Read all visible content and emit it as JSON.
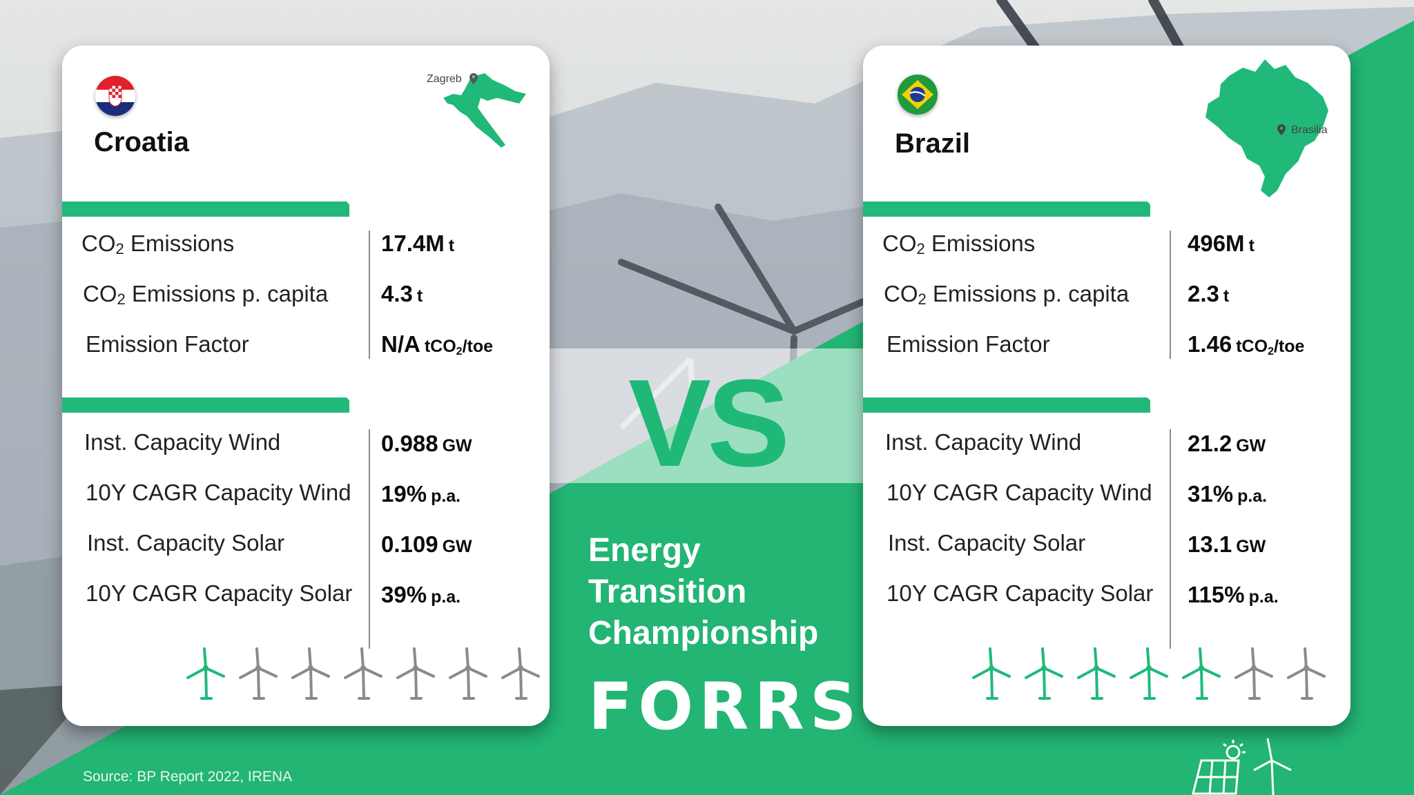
{
  "colors": {
    "accent_green": "#20b97a",
    "turbine_active": "#20b97a",
    "turbine_inactive": "#8a8a8a"
  },
  "left": {
    "country": "Croatia",
    "flag_icon": "croatia-flag-icon",
    "capital": "Zagreb",
    "stats_emissions": [
      {
        "label_pre": "CO",
        "label_sub": "2",
        "label_post": " Emissions",
        "value": "17.4M",
        "unit_pre": "t",
        "unit_sub": "",
        "unit_post": ""
      },
      {
        "label_pre": "CO",
        "label_sub": "2",
        "label_post": " Emissions p. capita",
        "value": "4.3",
        "unit_pre": "t",
        "unit_sub": "",
        "unit_post": ""
      },
      {
        "label_pre": "Emission Factor",
        "label_sub": "",
        "label_post": "",
        "value": "N/A",
        "unit_pre": "tCO",
        "unit_sub": "2",
        "unit_post": "/toe"
      }
    ],
    "stats_capacity": [
      {
        "label": "Inst. Capacity Wind",
        "value": "0.988",
        "unit": "GW"
      },
      {
        "label": "10Y CAGR Capacity Wind",
        "value": "19%",
        "unit": "p.a."
      },
      {
        "label": "Inst. Capacity Solar",
        "value": "0.109",
        "unit": "GW"
      },
      {
        "label": "10Y CAGR Capacity Solar",
        "value": "39%",
        "unit": "p.a."
      }
    ],
    "turbines_total": 7,
    "turbines_active": 1
  },
  "right": {
    "country": "Brazil",
    "flag_icon": "brazil-flag-icon",
    "capital": "Brasilia",
    "stats_emissions": [
      {
        "label_pre": "CO",
        "label_sub": "2",
        "label_post": " Emissions",
        "value": "496M",
        "unit_pre": "t",
        "unit_sub": "",
        "unit_post": ""
      },
      {
        "label_pre": "CO",
        "label_sub": "2",
        "label_post": " Emissions p. capita",
        "value": "2.3",
        "unit_pre": "t",
        "unit_sub": "",
        "unit_post": ""
      },
      {
        "label_pre": "Emission Factor",
        "label_sub": "",
        "label_post": "",
        "value": "1.46",
        "unit_pre": "tCO",
        "unit_sub": "2",
        "unit_post": "/toe"
      }
    ],
    "stats_capacity": [
      {
        "label": "Inst. Capacity Wind",
        "value": "21.2",
        "unit": "GW"
      },
      {
        "label": "10Y CAGR Capacity Wind",
        "value": "31%",
        "unit": "p.a."
      },
      {
        "label": "Inst. Capacity Solar",
        "value": "13.1",
        "unit": "GW"
      },
      {
        "label": "10Y CAGR Capacity Solar",
        "value": "115%",
        "unit": "p.a."
      }
    ],
    "turbines_total": 7,
    "turbines_active": 5
  },
  "center": {
    "vs": "VS",
    "title_lines": [
      "Energy",
      "Transition",
      "Championship"
    ],
    "logo": "FORRS"
  },
  "footer": {
    "source": "Source:  BP Report 2022, IRENA"
  }
}
